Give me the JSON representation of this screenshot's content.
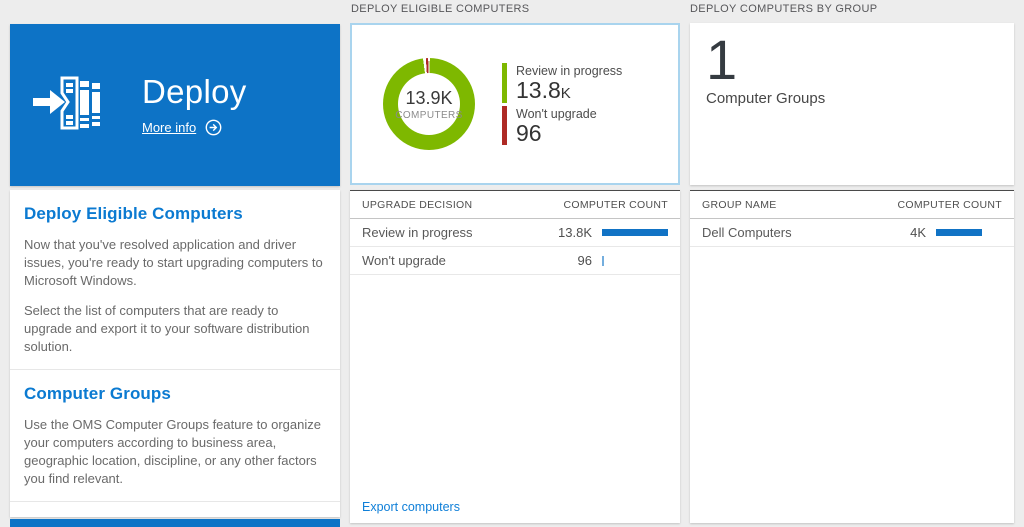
{
  "left_panel": {
    "tile": {
      "title": "Deploy",
      "more_info_label": "More info"
    },
    "sections": [
      {
        "heading": "Deploy Eligible Computers",
        "paragraphs": [
          "Now that you've resolved application and driver issues, you're ready to start upgrading computers to Microsoft Windows.",
          "Select the list of computers that are ready to upgrade and export it to your software distribution solution."
        ]
      },
      {
        "heading": "Computer Groups",
        "paragraphs": [
          "Use the OMS Computer Groups feature to organize your computers according to business area, geographic location, discipline, or any other factors you find relevant."
        ]
      }
    ]
  },
  "eligible": {
    "header": "DEPLOY ELIGIBLE COMPUTERS",
    "donut": {
      "center_value": "13.9K",
      "center_label": "COMPUTERS",
      "legend": [
        {
          "label": "Review in progress",
          "value": "13.8K",
          "color": "#7eb800"
        },
        {
          "label": "Won't upgrade",
          "value": "96",
          "color": "#ae2a25"
        }
      ]
    },
    "grid": {
      "columns": [
        "UPGRADE DECISION",
        "COMPUTER COUNT"
      ],
      "rows": [
        {
          "label": "Review in progress",
          "value": "13.8K",
          "fraction": 1
        },
        {
          "label": "Won't upgrade",
          "value": "96",
          "fraction": 0.012
        }
      ]
    },
    "footer_link": "Export computers"
  },
  "groups": {
    "header": "DEPLOY COMPUTERS BY GROUP",
    "summary": {
      "value": "1",
      "label": "Computer Groups"
    },
    "grid": {
      "columns": [
        "GROUP NAME",
        "COMPUTER COUNT"
      ],
      "rows": [
        {
          "label": "Dell Computers",
          "value": "4K",
          "fraction": 0.7
        }
      ]
    }
  },
  "chart_data": {
    "type": "pie",
    "title": "Deploy Eligible Computers",
    "center_value": 13900,
    "center_label": "COMPUTERS",
    "slices": [
      {
        "label": "Review in progress",
        "value": 13800,
        "color": "#7eb800"
      },
      {
        "label": "Won't upgrade",
        "value": 96,
        "color": "#ae2a25"
      }
    ]
  },
  "colors": {
    "tile_blue": "#0d73c6",
    "heading_blue": "#0b7ad1",
    "link_blue": "#0f7fd8",
    "bar_blue": "#1173c5",
    "selected_border": "#a9d4ee",
    "green": "#7eb800",
    "red": "#ae2a25",
    "page_background": "#ededed"
  }
}
